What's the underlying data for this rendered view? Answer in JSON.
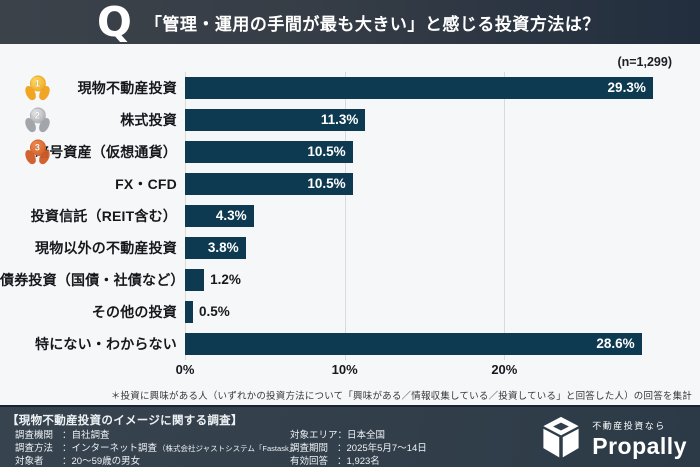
{
  "header": {
    "q_mark": "Q",
    "title": "「管理・運用の手間が最も大きい」と感じる投資方法は？"
  },
  "sample_note": "(n=1,299)",
  "chart_data": {
    "type": "bar",
    "orientation": "horizontal",
    "title": "「管理・運用の手間が最も大きい」と感じる投資方法は？",
    "categories": [
      "現物不動産投資",
      "株式投資",
      "暗号資産（仮想通貨）",
      "FX・CFD",
      "投資信託（REIT含む）",
      "現物以外の不動産投資",
      "債券投資（国債・社債など）",
      "その他の投資",
      "特にない・わからない"
    ],
    "values": [
      29.3,
      11.3,
      10.5,
      10.5,
      4.3,
      3.8,
      1.2,
      0.5,
      28.6
    ],
    "value_labels": [
      "29.3%",
      "11.3%",
      "10.5%",
      "10.5%",
      "4.3%",
      "3.8%",
      "1.2%",
      "0.5%",
      "28.6%"
    ],
    "ranks": [
      1,
      2,
      3,
      null,
      null,
      null,
      null,
      null,
      null
    ],
    "ticks": [
      {
        "label": "0%",
        "value": 0
      },
      {
        "label": "10%",
        "value": 10
      },
      {
        "label": "20%",
        "value": 20
      }
    ],
    "axis_max": 30.5,
    "grid": true,
    "legend": false
  },
  "footnote": "＊投資に興味がある人（いずれかの投資方法について「興味がある／情報収集している／投資している」と回答した人）の回答を集計",
  "survey_info": {
    "heading": "【現物不動産投資のイメージに関する調査】",
    "left_rows": [
      {
        "label": "調査機関",
        "value": "自社調査"
      },
      {
        "label": "調査方法",
        "value": "インターネット調査",
        "note": "（株式会社ジャストシステム「Fastask」）"
      },
      {
        "label": "対象者",
        "value": "20～59歳の男女"
      }
    ],
    "right_rows": [
      {
        "label": "対象エリア",
        "value": "日本全国"
      },
      {
        "label": "調査期間",
        "value": "2025年5月7～14日"
      },
      {
        "label": "有効回答",
        "value": "1,923名"
      }
    ]
  },
  "logo": {
    "tagline": "不動産投資なら",
    "brand": "Propally"
  },
  "colors": {
    "bar": "#0d3a50",
    "header_dark": "#222e3e",
    "band_bg": "#323f4b",
    "chart_bg": "#f6f7f8",
    "medal_gold": "#efa018",
    "medal_silver": "#9da0a5",
    "medal_bronze": "#d05a24"
  }
}
